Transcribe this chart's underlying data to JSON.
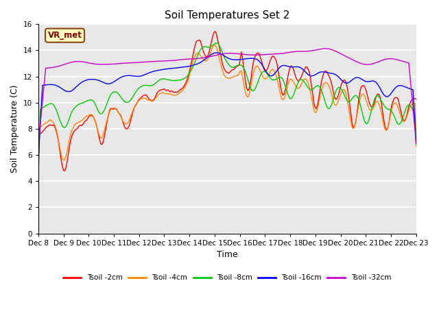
{
  "title": "Soil Temperatures Set 2",
  "xlabel": "Time",
  "ylabel": "Soil Temperature (C)",
  "ylim": [
    0,
    16
  ],
  "yticks": [
    0,
    2,
    4,
    6,
    8,
    10,
    12,
    14,
    16
  ],
  "colors": {
    "tsoil_2cm": "#FF0000",
    "tsoil_4cm": "#FF8800",
    "tsoil_8cm": "#00CC00",
    "tsoil_16cm": "#0000FF",
    "tsoil_32cm": "#CC00CC"
  },
  "legend_labels": [
    "Tsoil -2cm",
    "Tsoil -4cm",
    "Tsoil -8cm",
    "Tsoil -16cm",
    "Tsoil -32cm"
  ],
  "annotation_text": "VR_met",
  "bg_color": "#E8E8E8",
  "line_width": 1.0,
  "xtick_labels": [
    "Dec 8",
    "Dec 9",
    "Dec 10",
    "Dec 11",
    "Dec 12",
    "Dec 13",
    "Dec 14",
    "Dec 15",
    "Dec 16",
    "Dec 17",
    "Dec 18",
    "Dec 19",
    "Dec 20",
    "Dec 21",
    "Dec 22",
    "Dec 23"
  ],
  "font_size_title": 11,
  "font_size_axis": 9,
  "font_size_tick": 7.5
}
